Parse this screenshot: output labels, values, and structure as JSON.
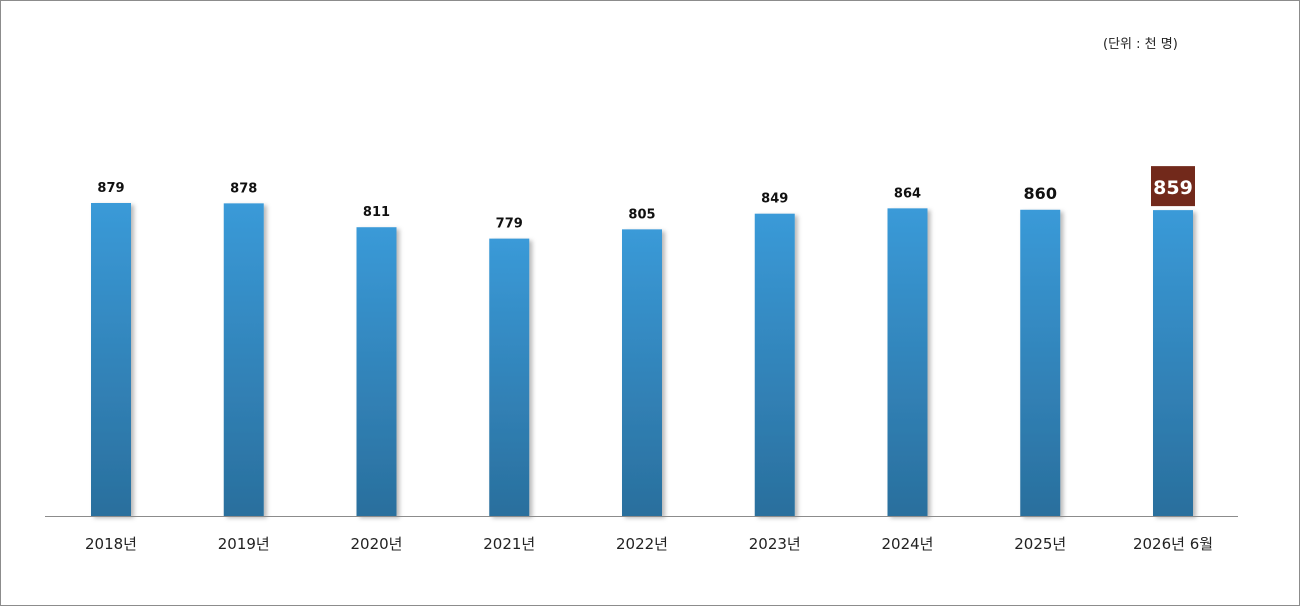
{
  "unit_label": "(단위 : 천 명)",
  "colors": {
    "bar_top": "#3a9ad8",
    "bar_bottom": "#2a6f9d",
    "highlight_box": "#72291b",
    "highlight_text": "#ffffff",
    "axis": "#8c8c8c"
  },
  "chart_data": {
    "type": "bar",
    "categories": [
      "2018년",
      "2019년",
      "2020년",
      "2021년",
      "2022년",
      "2023년",
      "2024년",
      "2025년",
      "2026년 6월"
    ],
    "values": [
      879,
      878,
      811,
      779,
      805,
      849,
      864,
      860,
      859
    ],
    "data_labels": [
      "879",
      "878",
      "811",
      "779",
      "805",
      "849",
      "864",
      "860",
      "859"
    ],
    "highlight_index": 8,
    "title": "",
    "xlabel": "",
    "ylabel": "",
    "ylim": [
      0,
      879
    ],
    "grid": false,
    "legend": "none"
  }
}
